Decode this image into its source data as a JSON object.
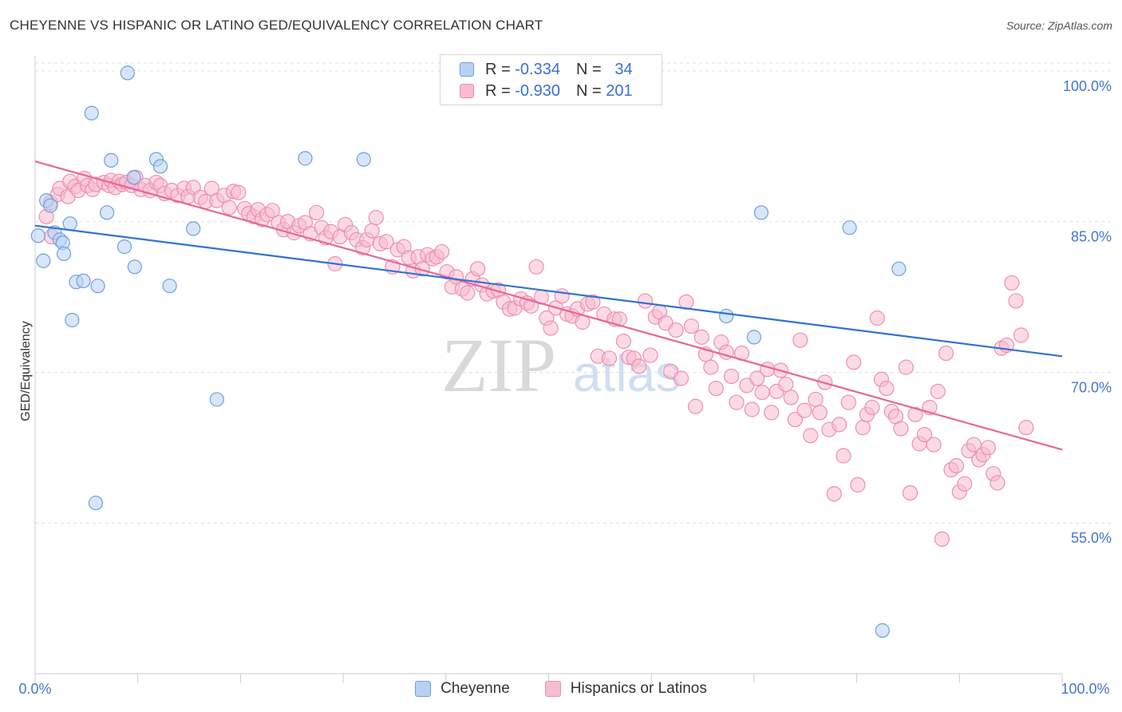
{
  "title": "CHEYENNE VS HISPANIC OR LATINO GED/EQUIVALENCY CORRELATION CHART",
  "source": "Source: ZipAtlas.com",
  "watermark": {
    "zip": "ZIP",
    "atlas": "atlas"
  },
  "colors": {
    "cheyenne_fill": "#b8d1f3",
    "cheyenne_stroke": "#6f9fe0",
    "cheyenne_line": "#2f72d4",
    "hispanic_fill": "#f7bcd0",
    "hispanic_stroke": "#ee8fb0",
    "hispanic_line": "#e8659a",
    "tick_label": "#4477cc",
    "grid": "#e0e0e0"
  },
  "legend_top": {
    "rows": [
      {
        "r_label": "R =",
        "r_value": "-0.334",
        "n_label": "N =",
        "n_value": "34"
      },
      {
        "r_label": "R =",
        "r_value": "-0.930",
        "n_label": "N =",
        "n_value": "201"
      }
    ]
  },
  "legend_bottom": {
    "items": [
      "Cheyenne",
      "Hispanics or Latinos"
    ]
  },
  "chart_data": {
    "type": "scatter",
    "title": "CHEYENNE VS HISPANIC OR LATINO GED/EQUIVALENCY CORRELATION CHART",
    "xlabel": "",
    "ylabel": "GED/Equivalency",
    "xlim": [
      0,
      100
    ],
    "ylim": [
      40,
      101.5
    ],
    "x_tick_labels": [
      "0.0%",
      "100.0%"
    ],
    "y_ticks": [
      55,
      70,
      85,
      100
    ],
    "y_tick_labels": [
      "55.0%",
      "70.0%",
      "85.0%",
      "100.0%"
    ],
    "grid": true,
    "legend_position": "top-center",
    "series": [
      {
        "name": "Cheyenne",
        "trend": [
          [
            0,
            84.6
          ],
          [
            100,
            71.6
          ]
        ],
        "points": [
          [
            0.3,
            83.6
          ],
          [
            0.8,
            81.1
          ],
          [
            1.1,
            87.1
          ],
          [
            1.5,
            86.6
          ],
          [
            1.9,
            83.9
          ],
          [
            2.4,
            83.2
          ],
          [
            2.7,
            82.9
          ],
          [
            2.8,
            81.8
          ],
          [
            3.4,
            84.8
          ],
          [
            3.6,
            75.2
          ],
          [
            4.0,
            79.0
          ],
          [
            4.7,
            79.1
          ],
          [
            5.5,
            95.8
          ],
          [
            5.9,
            57.0
          ],
          [
            6.1,
            78.6
          ],
          [
            7.0,
            85.9
          ],
          [
            7.4,
            91.1
          ],
          [
            8.7,
            82.5
          ],
          [
            9.0,
            99.8
          ],
          [
            9.6,
            89.4
          ],
          [
            9.7,
            80.5
          ],
          [
            11.8,
            91.2
          ],
          [
            12.2,
            90.5
          ],
          [
            13.1,
            78.6
          ],
          [
            15.4,
            84.3
          ],
          [
            17.7,
            67.3
          ],
          [
            26.3,
            91.3
          ],
          [
            32.0,
            91.2
          ],
          [
            67.3,
            75.6
          ],
          [
            70.0,
            73.5
          ],
          [
            70.7,
            85.9
          ],
          [
            79.3,
            84.4
          ],
          [
            84.1,
            80.3
          ],
          [
            82.5,
            44.3
          ]
        ]
      },
      {
        "name": "Hispanics or Latinos",
        "trend": [
          [
            0,
            91.0
          ],
          [
            100,
            62.3
          ]
        ],
        "points": [
          [
            1.1,
            85.5
          ],
          [
            1.5,
            86.9
          ],
          [
            2.2,
            87.7
          ],
          [
            2.4,
            88.3
          ],
          [
            3.2,
            87.5
          ],
          [
            3.4,
            89.0
          ],
          [
            3.9,
            88.5
          ],
          [
            4.2,
            88.1
          ],
          [
            4.8,
            89.3
          ],
          [
            5.1,
            88.6
          ],
          [
            5.6,
            88.2
          ],
          [
            5.9,
            88.7
          ],
          [
            6.7,
            88.9
          ],
          [
            7.2,
            88.6
          ],
          [
            7.4,
            89.1
          ],
          [
            7.8,
            88.4
          ],
          [
            8.2,
            89.0
          ],
          [
            8.5,
            88.7
          ],
          [
            8.9,
            88.9
          ],
          [
            9.4,
            88.6
          ],
          [
            9.8,
            89.4
          ],
          [
            10.3,
            88.2
          ],
          [
            10.7,
            88.6
          ],
          [
            11.2,
            88.1
          ],
          [
            11.8,
            88.9
          ],
          [
            12.2,
            88.6
          ],
          [
            12.6,
            87.8
          ],
          [
            13.3,
            88.1
          ],
          [
            13.9,
            87.6
          ],
          [
            14.5,
            88.3
          ],
          [
            14.9,
            87.5
          ],
          [
            15.4,
            88.4
          ],
          [
            16.1,
            87.4
          ],
          [
            16.6,
            87.0
          ],
          [
            17.2,
            88.3
          ],
          [
            17.7,
            87.1
          ],
          [
            18.4,
            87.6
          ],
          [
            18.9,
            86.4
          ],
          [
            19.3,
            88.0
          ],
          [
            19.8,
            87.9
          ],
          [
            20.4,
            86.3
          ],
          [
            20.8,
            85.8
          ],
          [
            21.3,
            85.5
          ],
          [
            21.7,
            86.2
          ],
          [
            22.1,
            85.2
          ],
          [
            22.6,
            85.7
          ],
          [
            23.1,
            86.1
          ],
          [
            23.7,
            84.9
          ],
          [
            24.2,
            84.2
          ],
          [
            24.6,
            85.0
          ],
          [
            25.2,
            83.9
          ],
          [
            25.7,
            84.6
          ],
          [
            26.3,
            84.9
          ],
          [
            26.8,
            83.8
          ],
          [
            27.4,
            85.9
          ],
          [
            27.9,
            84.4
          ],
          [
            28.3,
            83.4
          ],
          [
            28.8,
            84.0
          ],
          [
            29.2,
            80.8
          ],
          [
            29.7,
            83.5
          ],
          [
            30.2,
            84.7
          ],
          [
            30.8,
            83.9
          ],
          [
            31.3,
            83.2
          ],
          [
            31.9,
            82.4
          ],
          [
            32.3,
            83.2
          ],
          [
            32.8,
            84.1
          ],
          [
            33.2,
            85.4
          ],
          [
            33.6,
            82.8
          ],
          [
            34.2,
            83.0
          ],
          [
            34.8,
            80.5
          ],
          [
            35.3,
            82.2
          ],
          [
            35.9,
            82.5
          ],
          [
            36.4,
            81.4
          ],
          [
            36.8,
            80.1
          ],
          [
            37.3,
            81.5
          ],
          [
            37.7,
            80.3
          ],
          [
            38.2,
            81.7
          ],
          [
            38.7,
            81.3
          ],
          [
            39.1,
            81.5
          ],
          [
            39.6,
            82.0
          ],
          [
            40.1,
            80.0
          ],
          [
            40.6,
            78.5
          ],
          [
            41.0,
            79.5
          ],
          [
            41.6,
            78.3
          ],
          [
            42.1,
            77.9
          ],
          [
            42.6,
            79.3
          ],
          [
            43.1,
            80.3
          ],
          [
            43.5,
            78.7
          ],
          [
            44.0,
            77.8
          ],
          [
            44.6,
            78.1
          ],
          [
            45.1,
            78.2
          ],
          [
            45.6,
            77.0
          ],
          [
            46.2,
            76.3
          ],
          [
            46.7,
            76.4
          ],
          [
            47.3,
            77.3
          ],
          [
            47.9,
            76.9
          ],
          [
            48.3,
            76.6
          ],
          [
            48.8,
            80.5
          ],
          [
            49.3,
            77.5
          ],
          [
            49.8,
            75.4
          ],
          [
            50.2,
            74.4
          ],
          [
            50.7,
            76.4
          ],
          [
            51.3,
            77.6
          ],
          [
            51.8,
            75.8
          ],
          [
            52.3,
            75.6
          ],
          [
            52.8,
            76.3
          ],
          [
            53.3,
            75.0
          ],
          [
            53.8,
            76.8
          ],
          [
            54.3,
            77.0
          ],
          [
            54.8,
            71.6
          ],
          [
            55.4,
            75.8
          ],
          [
            55.9,
            71.4
          ],
          [
            56.4,
            75.3
          ],
          [
            56.9,
            75.3
          ],
          [
            57.3,
            73.1
          ],
          [
            57.8,
            71.5
          ],
          [
            58.3,
            71.4
          ],
          [
            58.8,
            70.6
          ],
          [
            59.4,
            77.1
          ],
          [
            59.9,
            71.7
          ],
          [
            60.4,
            75.5
          ],
          [
            60.8,
            76.0
          ],
          [
            61.4,
            74.9
          ],
          [
            61.9,
            70.1
          ],
          [
            62.4,
            74.2
          ],
          [
            62.9,
            69.4
          ],
          [
            63.4,
            77.0
          ],
          [
            63.9,
            74.6
          ],
          [
            64.3,
            66.6
          ],
          [
            64.9,
            73.5
          ],
          [
            65.3,
            71.8
          ],
          [
            65.8,
            70.5
          ],
          [
            66.3,
            68.4
          ],
          [
            66.8,
            73.0
          ],
          [
            67.3,
            72.0
          ],
          [
            67.8,
            69.6
          ],
          [
            68.3,
            67.0
          ],
          [
            68.8,
            71.9
          ],
          [
            69.3,
            68.7
          ],
          [
            69.8,
            66.3
          ],
          [
            70.3,
            69.4
          ],
          [
            70.8,
            68.0
          ],
          [
            71.3,
            70.3
          ],
          [
            71.7,
            66.0
          ],
          [
            72.2,
            68.1
          ],
          [
            72.6,
            70.2
          ],
          [
            73.1,
            68.8
          ],
          [
            73.6,
            67.5
          ],
          [
            74.0,
            65.3
          ],
          [
            74.5,
            73.2
          ],
          [
            74.9,
            66.2
          ],
          [
            75.5,
            63.7
          ],
          [
            76.0,
            67.3
          ],
          [
            76.4,
            66.0
          ],
          [
            76.9,
            69.0
          ],
          [
            77.3,
            64.3
          ],
          [
            77.8,
            57.9
          ],
          [
            78.3,
            64.8
          ],
          [
            78.7,
            61.7
          ],
          [
            79.2,
            67.0
          ],
          [
            79.7,
            71.0
          ],
          [
            80.1,
            58.8
          ],
          [
            80.6,
            64.5
          ],
          [
            81.0,
            65.8
          ],
          [
            81.5,
            66.5
          ],
          [
            82.0,
            75.4
          ],
          [
            82.4,
            69.3
          ],
          [
            82.9,
            68.4
          ],
          [
            83.4,
            66.1
          ],
          [
            83.8,
            65.6
          ],
          [
            84.3,
            64.4
          ],
          [
            84.8,
            70.5
          ],
          [
            85.2,
            58.0
          ],
          [
            85.7,
            65.8
          ],
          [
            86.1,
            62.9
          ],
          [
            86.6,
            63.8
          ],
          [
            87.1,
            66.5
          ],
          [
            87.5,
            62.8
          ],
          [
            87.9,
            68.1
          ],
          [
            88.3,
            53.4
          ],
          [
            88.7,
            71.9
          ],
          [
            89.2,
            60.3
          ],
          [
            89.7,
            60.7
          ],
          [
            90.0,
            58.1
          ],
          [
            90.5,
            58.9
          ],
          [
            90.9,
            62.2
          ],
          [
            91.4,
            62.8
          ],
          [
            91.9,
            61.3
          ],
          [
            92.3,
            61.8
          ],
          [
            92.8,
            62.5
          ],
          [
            93.3,
            59.9
          ],
          [
            93.7,
            59.0
          ],
          [
            94.1,
            72.4
          ],
          [
            94.6,
            72.7
          ],
          [
            95.1,
            78.9
          ],
          [
            95.5,
            77.1
          ],
          [
            96.0,
            73.7
          ],
          [
            96.5,
            64.5
          ],
          [
            1.6,
            83.5
          ]
        ]
      }
    ]
  }
}
